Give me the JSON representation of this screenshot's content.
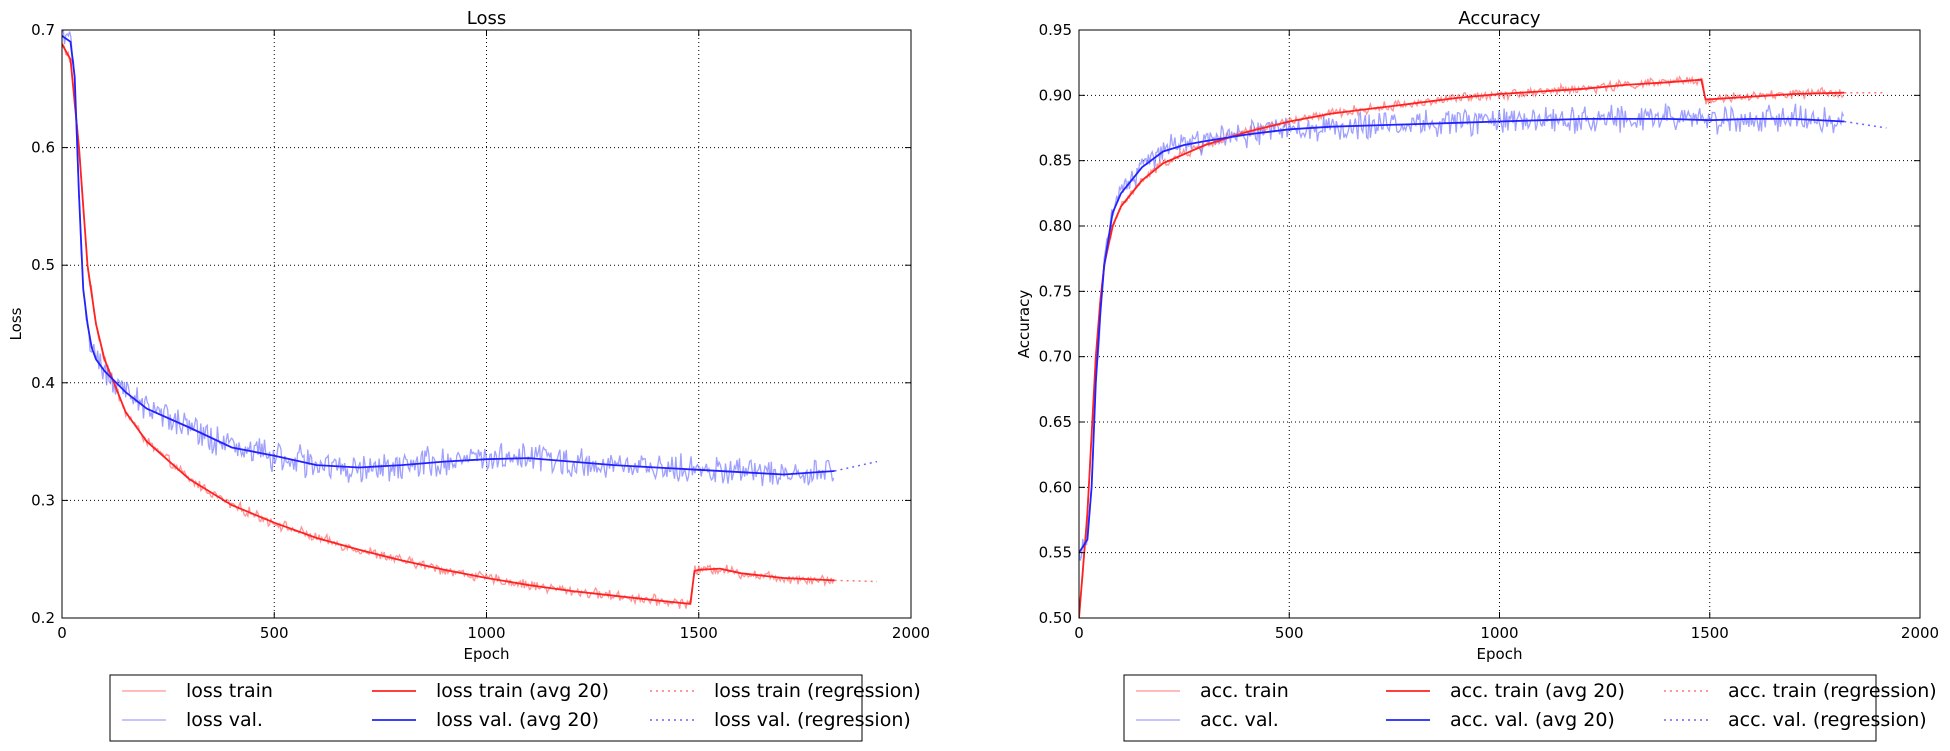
{
  "chart_data": [
    {
      "type": "line",
      "title": "Loss",
      "xlabel": "Epoch",
      "ylabel": "Loss",
      "xlim": [
        0,
        2000
      ],
      "ylim": [
        0.2,
        0.7
      ],
      "xticks": [
        "0",
        "500",
        "1000",
        "1500",
        "2000"
      ],
      "yticks": [
        "0.2",
        "0.3",
        "0.4",
        "0.5",
        "0.6",
        "0.7"
      ],
      "grid": true,
      "legend_position": "below",
      "legend": {
        "rows": [
          [
            "loss train",
            "loss train (avg 20)",
            "loss train (regression)"
          ],
          [
            "loss val.",
            "loss val. (avg 20)",
            "loss val. (regression)"
          ]
        ]
      },
      "series": [
        {
          "name": "loss train",
          "color": "#ff6666",
          "style": "solid-thin",
          "x": [
            0,
            20,
            40,
            60,
            80,
            100,
            150,
            200,
            300,
            400,
            500,
            600,
            700,
            800,
            900,
            1000,
            1100,
            1200,
            1300,
            1400,
            1480,
            1490,
            1500,
            1550,
            1600,
            1700,
            1820
          ],
          "y": [
            0.688,
            0.675,
            0.6,
            0.5,
            0.45,
            0.42,
            0.375,
            0.35,
            0.318,
            0.296,
            0.281,
            0.268,
            0.258,
            0.249,
            0.241,
            0.234,
            0.228,
            0.223,
            0.219,
            0.215,
            0.212,
            0.24,
            0.241,
            0.242,
            0.238,
            0.234,
            0.232
          ]
        },
        {
          "name": "loss val.",
          "color": "#7777ff",
          "style": "solid-thin",
          "x": [
            0,
            20,
            30,
            40,
            50,
            60,
            70,
            80,
            100,
            150,
            200,
            300,
            400,
            500,
            600,
            700,
            800,
            900,
            1000,
            1100,
            1200,
            1300,
            1400,
            1500,
            1600,
            1700,
            1820
          ],
          "y": [
            0.695,
            0.69,
            0.66,
            0.56,
            0.48,
            0.45,
            0.43,
            0.42,
            0.41,
            0.392,
            0.378,
            0.362,
            0.345,
            0.338,
            0.33,
            0.328,
            0.33,
            0.333,
            0.335,
            0.336,
            0.333,
            0.33,
            0.328,
            0.326,
            0.324,
            0.322,
            0.325
          ]
        },
        {
          "name": "loss train (avg 20)",
          "color": "#ff2222",
          "style": "solid",
          "x": [
            0,
            20,
            40,
            60,
            80,
            100,
            150,
            200,
            300,
            400,
            500,
            600,
            700,
            800,
            900,
            1000,
            1100,
            1200,
            1300,
            1400,
            1480,
            1490,
            1500,
            1550,
            1600,
            1700,
            1820
          ],
          "y": [
            0.688,
            0.675,
            0.6,
            0.5,
            0.45,
            0.42,
            0.375,
            0.35,
            0.318,
            0.296,
            0.281,
            0.268,
            0.258,
            0.249,
            0.241,
            0.234,
            0.228,
            0.223,
            0.219,
            0.215,
            0.212,
            0.24,
            0.241,
            0.242,
            0.238,
            0.234,
            0.232
          ]
        },
        {
          "name": "loss val. (avg 20)",
          "color": "#2222ff",
          "style": "solid",
          "x": [
            0,
            20,
            30,
            40,
            50,
            60,
            70,
            80,
            100,
            150,
            200,
            300,
            400,
            500,
            600,
            700,
            800,
            900,
            1000,
            1100,
            1200,
            1300,
            1400,
            1500,
            1600,
            1700,
            1820
          ],
          "y": [
            0.695,
            0.69,
            0.66,
            0.56,
            0.48,
            0.45,
            0.43,
            0.42,
            0.41,
            0.392,
            0.378,
            0.362,
            0.345,
            0.338,
            0.33,
            0.328,
            0.33,
            0.333,
            0.335,
            0.336,
            0.333,
            0.33,
            0.328,
            0.326,
            0.324,
            0.322,
            0.325
          ]
        },
        {
          "name": "loss train (regression)",
          "color": "#ff6666",
          "style": "dotted",
          "x": [
            1820,
            1920
          ],
          "y": [
            0.232,
            0.231
          ]
        },
        {
          "name": "loss val. (regression)",
          "color": "#5555ff",
          "style": "dotted",
          "x": [
            1820,
            1920
          ],
          "y": [
            0.325,
            0.333
          ]
        }
      ]
    },
    {
      "type": "line",
      "title": "Accuracy",
      "xlabel": "Epoch",
      "ylabel": "Accuracy",
      "xlim": [
        0,
        2000
      ],
      "ylim": [
        0.5,
        0.95
      ],
      "xticks": [
        "0",
        "500",
        "1000",
        "1500",
        "2000"
      ],
      "yticks": [
        "0.50",
        "0.55",
        "0.60",
        "0.65",
        "0.70",
        "0.75",
        "0.80",
        "0.85",
        "0.90",
        "0.95"
      ],
      "grid": true,
      "legend_position": "below",
      "legend": {
        "rows": [
          [
            "acc. train",
            "acc. train (avg 20)",
            "acc. train (regression)"
          ],
          [
            "acc. val.",
            "acc. val. (avg 20)",
            "acc. val. (regression)"
          ]
        ]
      },
      "series": [
        {
          "name": "acc. train",
          "color": "#ff6666",
          "style": "solid-thin",
          "x": [
            0,
            10,
            20,
            30,
            40,
            50,
            60,
            80,
            100,
            150,
            200,
            300,
            400,
            500,
            600,
            700,
            800,
            900,
            1000,
            1100,
            1200,
            1300,
            1400,
            1480,
            1490,
            1500,
            1600,
            1700,
            1820
          ],
          "y": [
            0.5,
            0.54,
            0.58,
            0.64,
            0.7,
            0.74,
            0.77,
            0.8,
            0.815,
            0.835,
            0.848,
            0.862,
            0.872,
            0.88,
            0.886,
            0.89,
            0.894,
            0.898,
            0.901,
            0.903,
            0.905,
            0.908,
            0.91,
            0.912,
            0.897,
            0.897,
            0.899,
            0.901,
            0.902
          ]
        },
        {
          "name": "acc. val.",
          "color": "#7777ff",
          "style": "solid-thin",
          "x": [
            0,
            10,
            20,
            30,
            40,
            50,
            60,
            70,
            80,
            100,
            150,
            200,
            250,
            300,
            400,
            500,
            600,
            700,
            800,
            900,
            1000,
            1100,
            1200,
            1300,
            1400,
            1500,
            1600,
            1700,
            1820
          ],
          "y": [
            0.55,
            0.555,
            0.56,
            0.6,
            0.68,
            0.73,
            0.77,
            0.79,
            0.81,
            0.825,
            0.845,
            0.857,
            0.862,
            0.865,
            0.87,
            0.874,
            0.876,
            0.877,
            0.878,
            0.879,
            0.88,
            0.881,
            0.882,
            0.882,
            0.882,
            0.881,
            0.882,
            0.882,
            0.88
          ]
        },
        {
          "name": "acc. train (avg 20)",
          "color": "#ff2222",
          "style": "solid",
          "x": [
            0,
            10,
            20,
            30,
            40,
            50,
            60,
            80,
            100,
            150,
            200,
            300,
            400,
            500,
            600,
            700,
            800,
            900,
            1000,
            1100,
            1200,
            1300,
            1400,
            1480,
            1490,
            1500,
            1600,
            1700,
            1820
          ],
          "y": [
            0.5,
            0.54,
            0.58,
            0.64,
            0.7,
            0.74,
            0.77,
            0.8,
            0.815,
            0.835,
            0.848,
            0.862,
            0.872,
            0.88,
            0.886,
            0.89,
            0.894,
            0.898,
            0.901,
            0.903,
            0.905,
            0.908,
            0.91,
            0.912,
            0.897,
            0.897,
            0.899,
            0.901,
            0.902
          ]
        },
        {
          "name": "acc. val. (avg 20)",
          "color": "#2222ff",
          "style": "solid",
          "x": [
            0,
            10,
            20,
            30,
            40,
            50,
            60,
            70,
            80,
            100,
            150,
            200,
            250,
            300,
            400,
            500,
            600,
            700,
            800,
            900,
            1000,
            1100,
            1200,
            1300,
            1400,
            1500,
            1600,
            1700,
            1820
          ],
          "y": [
            0.55,
            0.555,
            0.56,
            0.6,
            0.68,
            0.73,
            0.77,
            0.79,
            0.81,
            0.825,
            0.845,
            0.857,
            0.862,
            0.865,
            0.87,
            0.874,
            0.876,
            0.877,
            0.878,
            0.879,
            0.88,
            0.881,
            0.882,
            0.882,
            0.882,
            0.881,
            0.882,
            0.882,
            0.88
          ]
        },
        {
          "name": "acc. train (regression)",
          "color": "#ff6666",
          "style": "dotted",
          "x": [
            1820,
            1920
          ],
          "y": [
            0.902,
            0.902
          ]
        },
        {
          "name": "acc. val. (regression)",
          "color": "#5555ff",
          "style": "dotted",
          "x": [
            1820,
            1920
          ],
          "y": [
            0.88,
            0.875
          ]
        }
      ]
    }
  ]
}
